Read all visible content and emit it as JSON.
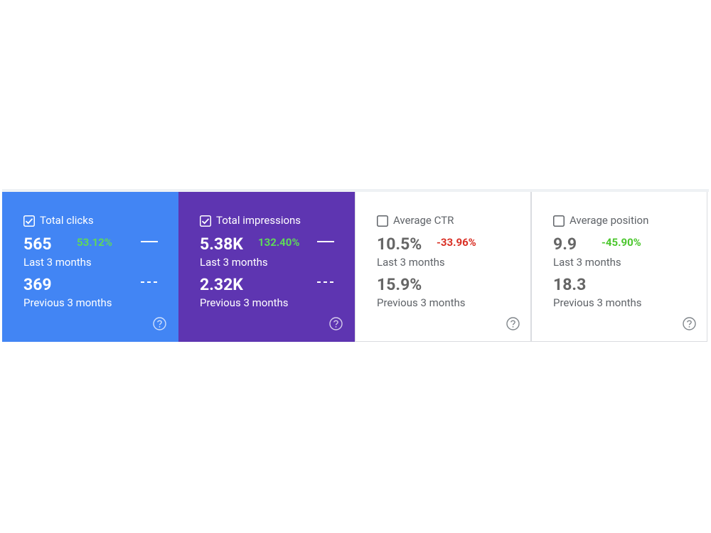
{
  "cards": [
    {
      "label": "Total clicks",
      "selected": true,
      "background": "#4285f4",
      "change_color": "#5fd85a",
      "current": "565",
      "current_label": "Last 3 months",
      "change": "53.12%",
      "previous": "369",
      "previous_label": "Previous 3 months"
    },
    {
      "label": "Total impressions",
      "selected": true,
      "background": "#5e35b1",
      "change_color": "#5fd85a",
      "current": "5.38K",
      "current_label": "Last 3 months",
      "change": "132.40%",
      "previous": "2.32K",
      "previous_label": "Previous 3 months"
    },
    {
      "label": "Average CTR",
      "selected": false,
      "background": "#ffffff",
      "change_color": "#d93025",
      "current": "10.5%",
      "current_label": "Last 3 months",
      "change": "-33.96%",
      "previous": "15.9%",
      "previous_label": "Previous 3 months"
    },
    {
      "label": "Average position",
      "selected": false,
      "background": "#ffffff",
      "change_color": "#4cc72e",
      "current": "9.9",
      "current_label": "Last 3 months",
      "change": "-45.90%",
      "previous": "18.3",
      "previous_label": "Previous 3 months"
    }
  ]
}
